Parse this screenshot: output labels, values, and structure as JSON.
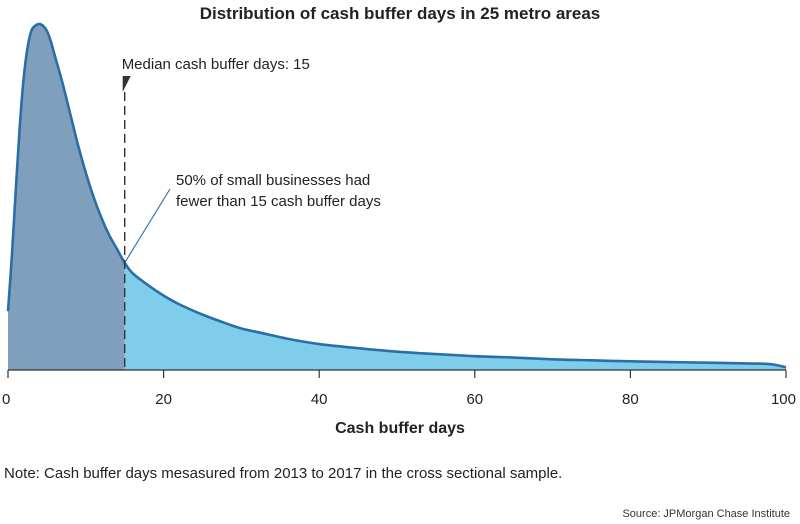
{
  "chart_data": {
    "type": "area",
    "title": "Distribution of cash buffer days in 25 metro areas",
    "xlabel": "Cash buffer days",
    "ylabel": "",
    "xlim": [
      0,
      100
    ],
    "ylim": [
      0,
      1
    ],
    "x_ticks": [
      0,
      20,
      40,
      60,
      80,
      100
    ],
    "grid": false,
    "series": [
      {
        "x": [
          0,
          0.5,
          1,
          1.5,
          2,
          2.5,
          3,
          3.5,
          4,
          4.5,
          5,
          5.5,
          6,
          7,
          8,
          9,
          10,
          11,
          12,
          13,
          14,
          15,
          16,
          18,
          20,
          22,
          25,
          28,
          30,
          33,
          36,
          40,
          45,
          50,
          55,
          60,
          65,
          70,
          75,
          80,
          85,
          90,
          95,
          98,
          100
        ],
        "values": [
          0.17,
          0.33,
          0.52,
          0.7,
          0.84,
          0.93,
          0.98,
          0.995,
          1.0,
          0.995,
          0.98,
          0.95,
          0.91,
          0.83,
          0.74,
          0.65,
          0.57,
          0.5,
          0.44,
          0.39,
          0.35,
          0.31,
          0.28,
          0.245,
          0.215,
          0.19,
          0.16,
          0.135,
          0.12,
          0.105,
          0.09,
          0.075,
          0.063,
          0.053,
          0.046,
          0.04,
          0.036,
          0.031,
          0.028,
          0.025,
          0.023,
          0.021,
          0.019,
          0.017,
          0.008
        ]
      }
    ],
    "median": 15,
    "annotations": {
      "median_label": "Median cash buffer days: 15",
      "share_label_line1": "50% of small businesses had",
      "share_label_line2": "fewer than 15 cash buffer days"
    },
    "colors": {
      "below_median": "#7f9fbc",
      "above_median": "#7ecdeb",
      "outline": "#2a6ea6"
    }
  },
  "note": "Note: Cash buffer days mesasured from 2013 to 2017 in the cross sectional sample.",
  "source": "Source: JPMorgan Chase Institute"
}
